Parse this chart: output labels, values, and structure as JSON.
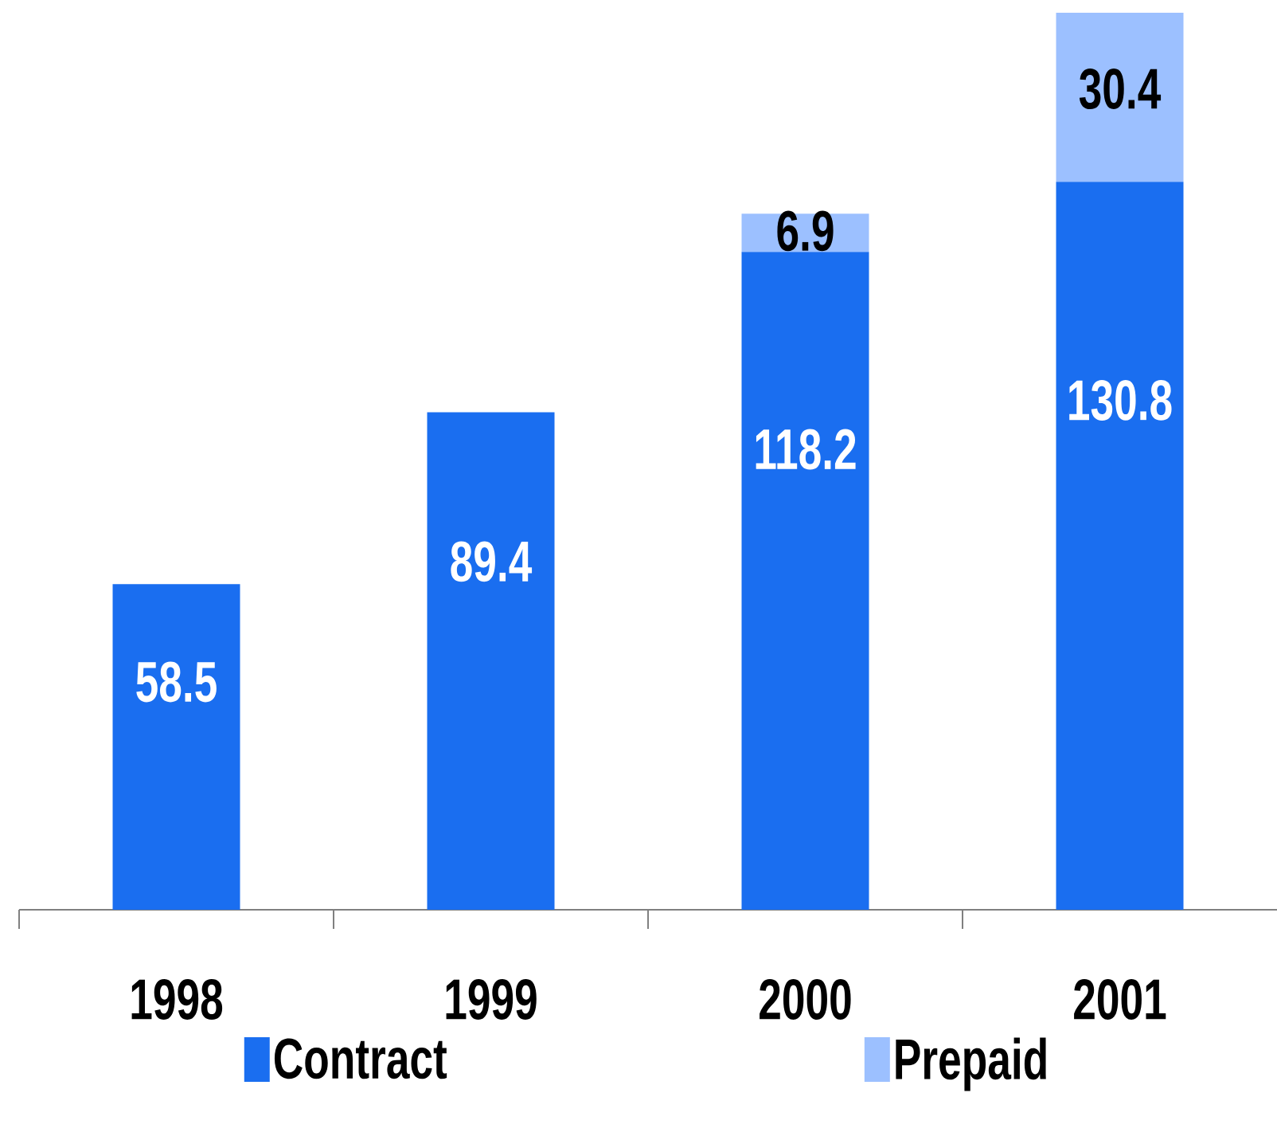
{
  "chart_data": {
    "type": "bar",
    "stacked": true,
    "data_labels": true,
    "legend": "bottom",
    "categories": [
      "1998",
      "1999",
      "2000",
      "2001"
    ],
    "series": [
      {
        "name": "Contract",
        "color": "#1a6ef0",
        "values": [
          58.5,
          89.4,
          118.2,
          130.8
        ]
      },
      {
        "name": "Prepaid",
        "color": "#9cc0ff",
        "values": [
          null,
          null,
          6.9,
          30.4
        ]
      }
    ]
  }
}
